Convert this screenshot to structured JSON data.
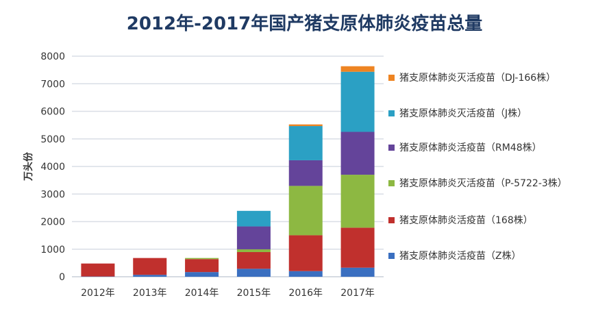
{
  "chart_data": {
    "type": "bar",
    "stacked": true,
    "title": "2012年-2017年国产猪支原体肺炎疫苗总量",
    "xlabel": "",
    "ylabel": "万头份",
    "ylim": [
      0,
      8000
    ],
    "yticks": [
      0,
      1000,
      2000,
      3000,
      4000,
      5000,
      6000,
      7000,
      8000
    ],
    "grid": true,
    "legend_position": "right",
    "categories": [
      "2012年",
      "2013年",
      "2014年",
      "2015年",
      "2016年",
      "2017年"
    ],
    "series": [
      {
        "name": "猪支原体肺炎活疫苗（Z株）",
        "color": "#3a6fc0",
        "values": [
          10,
          70,
          170,
          290,
          205,
          330
        ]
      },
      {
        "name": "猪支原体肺炎活疫苗（168株）",
        "color": "#c0302d",
        "values": [
          470,
          610,
          470,
          605,
          1300,
          1450
        ]
      },
      {
        "name": "猪支原体肺炎灭活疫苗（P-5722-3株）",
        "color": "#8db842",
        "values": [
          0,
          0,
          40,
          100,
          1790,
          1920
        ]
      },
      {
        "name": "猪支原体肺炎活疫苗（RM48株）",
        "color": "#64449a",
        "values": [
          0,
          0,
          0,
          830,
          930,
          1555
        ]
      },
      {
        "name": "猪支原体肺炎灭活疫苗（J株）",
        "color": "#2ba0c4",
        "values": [
          0,
          0,
          0,
          565,
          1240,
          2180
        ]
      },
      {
        "name": "猪支原体肺炎灭活疫苗（DJ-166株）",
        "color": "#ee8422",
        "values": [
          0,
          0,
          0,
          0,
          60,
          200
        ]
      }
    ]
  }
}
